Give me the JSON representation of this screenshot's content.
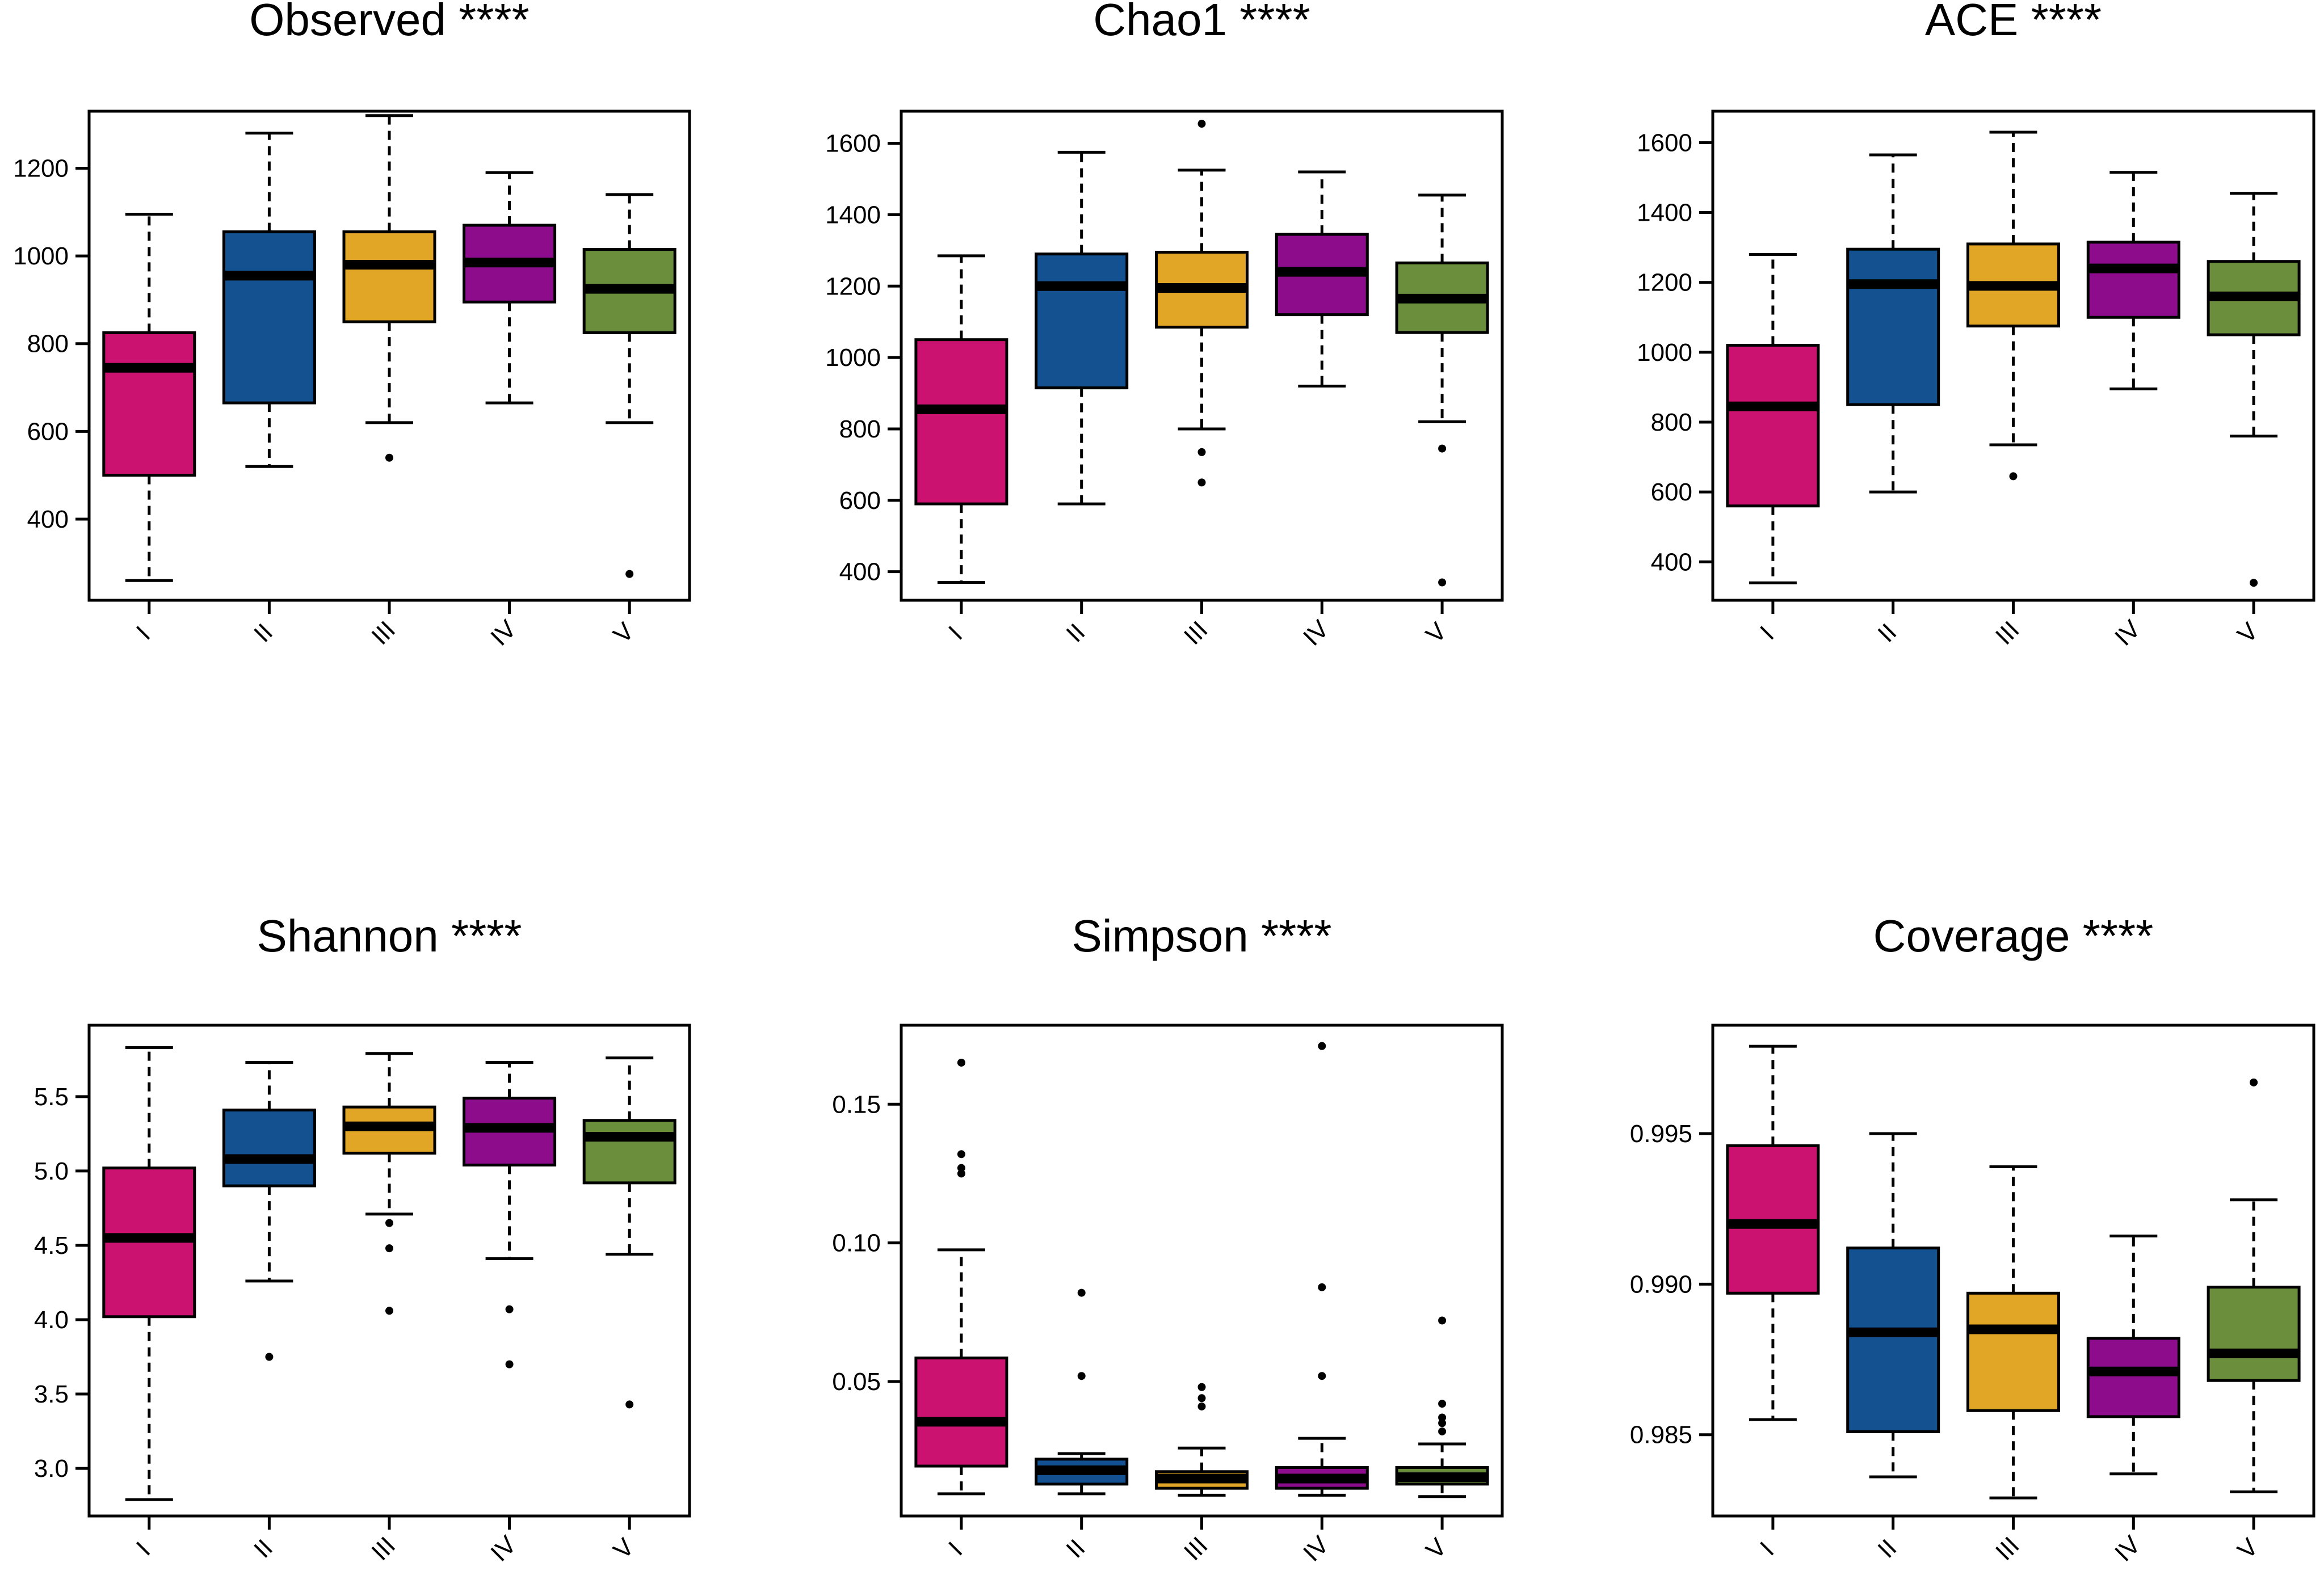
{
  "figure": {
    "colors": {
      "groups": [
        "#CC1270",
        "#135190",
        "#E1A626",
        "#8C0C8C",
        "#6A8E3C"
      ],
      "median": "#000000",
      "frame": "#000000"
    }
  },
  "chart_data": [
    {
      "type": "boxplot",
      "title": "Observed ****",
      "categories": [
        "I",
        "II",
        "III",
        "IV",
        "V"
      ],
      "ylim": [
        215,
        1330
      ],
      "yticks": [
        400,
        600,
        800,
        1000,
        1200
      ],
      "ytick_labels": [
        "400",
        "600",
        "800",
        "1000",
        "1200"
      ],
      "boxes": [
        {
          "low": 260,
          "q1": 500,
          "median": 745,
          "q3": 825,
          "high": 1095,
          "outliers": []
        },
        {
          "low": 520,
          "q1": 665,
          "median": 955,
          "q3": 1055,
          "high": 1280,
          "outliers": []
        },
        {
          "low": 620,
          "q1": 850,
          "median": 980,
          "q3": 1055,
          "high": 1320,
          "outliers": [
            540
          ]
        },
        {
          "low": 665,
          "q1": 895,
          "median": 985,
          "q3": 1070,
          "high": 1190,
          "outliers": []
        },
        {
          "low": 620,
          "q1": 825,
          "median": 925,
          "q3": 1015,
          "high": 1140,
          "outliers": [
            275
          ]
        }
      ]
    },
    {
      "type": "boxplot",
      "title": "Chao1 ****",
      "categories": [
        "I",
        "II",
        "III",
        "IV",
        "V"
      ],
      "ylim": [
        320,
        1690
      ],
      "yticks": [
        400,
        600,
        800,
        1000,
        1200,
        1400,
        1600
      ],
      "ytick_labels": [
        "400",
        "600",
        "800",
        "1000",
        "1200",
        "1400",
        "1600"
      ],
      "boxes": [
        {
          "low": 370,
          "q1": 590,
          "median": 855,
          "q3": 1050,
          "high": 1285,
          "outliers": []
        },
        {
          "low": 590,
          "q1": 915,
          "median": 1200,
          "q3": 1290,
          "high": 1575,
          "outliers": []
        },
        {
          "low": 800,
          "q1": 1085,
          "median": 1195,
          "q3": 1295,
          "high": 1525,
          "outliers": [
            650,
            735,
            1655
          ]
        },
        {
          "low": 920,
          "q1": 1120,
          "median": 1240,
          "q3": 1345,
          "high": 1520,
          "outliers": []
        },
        {
          "low": 820,
          "q1": 1070,
          "median": 1165,
          "q3": 1265,
          "high": 1455,
          "outliers": [
            370,
            745
          ]
        }
      ]
    },
    {
      "type": "boxplot",
      "title": "ACE ****",
      "categories": [
        "I",
        "II",
        "III",
        "IV",
        "V"
      ],
      "ylim": [
        290,
        1690
      ],
      "yticks": [
        400,
        600,
        800,
        1000,
        1200,
        1400,
        1600
      ],
      "ytick_labels": [
        "400",
        "600",
        "800",
        "1000",
        "1200",
        "1400",
        "1600"
      ],
      "boxes": [
        {
          "low": 340,
          "q1": 560,
          "median": 845,
          "q3": 1020,
          "high": 1280,
          "outliers": []
        },
        {
          "low": 600,
          "q1": 850,
          "median": 1195,
          "q3": 1295,
          "high": 1565,
          "outliers": []
        },
        {
          "low": 735,
          "q1": 1075,
          "median": 1190,
          "q3": 1310,
          "high": 1630,
          "outliers": [
            645
          ]
        },
        {
          "low": 895,
          "q1": 1100,
          "median": 1240,
          "q3": 1315,
          "high": 1515,
          "outliers": []
        },
        {
          "low": 760,
          "q1": 1050,
          "median": 1160,
          "q3": 1260,
          "high": 1455,
          "outliers": [
            340
          ]
        }
      ]
    },
    {
      "type": "boxplot",
      "title": "Shannon ****",
      "categories": [
        "I",
        "II",
        "III",
        "IV",
        "V"
      ],
      "ylim": [
        2.68,
        5.98
      ],
      "yticks": [
        3.0,
        3.5,
        4.0,
        4.5,
        5.0,
        5.5
      ],
      "ytick_labels": [
        "3.0",
        "3.5",
        "4.0",
        "4.5",
        "5.0",
        "5.5"
      ],
      "boxes": [
        {
          "low": 2.79,
          "q1": 4.02,
          "median": 4.55,
          "q3": 5.02,
          "high": 5.83,
          "outliers": []
        },
        {
          "low": 4.26,
          "q1": 4.9,
          "median": 5.08,
          "q3": 5.41,
          "high": 5.73,
          "outliers": [
            3.75
          ]
        },
        {
          "low": 4.71,
          "q1": 5.12,
          "median": 5.3,
          "q3": 5.43,
          "high": 5.79,
          "outliers": [
            4.06,
            4.48,
            4.65
          ]
        },
        {
          "low": 4.41,
          "q1": 5.04,
          "median": 5.29,
          "q3": 5.49,
          "high": 5.73,
          "outliers": [
            3.7,
            4.07
          ]
        },
        {
          "low": 4.44,
          "q1": 4.92,
          "median": 5.23,
          "q3": 5.34,
          "high": 5.76,
          "outliers": [
            3.43
          ]
        }
      ]
    },
    {
      "type": "boxplot",
      "title": "Simpson ****",
      "categories": [
        "I",
        "II",
        "III",
        "IV",
        "V"
      ],
      "ylim": [
        0.0015,
        0.1785
      ],
      "yticks": [
        0.05,
        0.1,
        0.15
      ],
      "ytick_labels": [
        "0.05",
        "0.10",
        "0.15"
      ],
      "boxes": [
        {
          "low": 0.0095,
          "q1": 0.0195,
          "median": 0.0355,
          "q3": 0.0585,
          "high": 0.0975,
          "outliers": [
            0.125,
            0.127,
            0.132,
            0.165
          ]
        },
        {
          "low": 0.0095,
          "q1": 0.013,
          "median": 0.018,
          "q3": 0.022,
          "high": 0.024,
          "outliers": [
            0.052,
            0.082
          ]
        },
        {
          "low": 0.009,
          "q1": 0.0115,
          "median": 0.015,
          "q3": 0.0175,
          "high": 0.026,
          "outliers": [
            0.041,
            0.044,
            0.048
          ]
        },
        {
          "low": 0.009,
          "q1": 0.0115,
          "median": 0.015,
          "q3": 0.019,
          "high": 0.0295,
          "outliers": [
            0.052,
            0.084,
            0.171
          ]
        },
        {
          "low": 0.0085,
          "q1": 0.013,
          "median": 0.0155,
          "q3": 0.019,
          "high": 0.0275,
          "outliers": [
            0.032,
            0.035,
            0.037,
            0.042,
            0.072
          ]
        }
      ]
    },
    {
      "type": "boxplot",
      "title": "Coverage ****",
      "categories": [
        "I",
        "II",
        "III",
        "IV",
        "V"
      ],
      "ylim": [
        0.9823,
        0.9986
      ],
      "yticks": [
        0.985,
        0.99,
        0.995
      ],
      "ytick_labels": [
        "0.985",
        "0.990",
        "0.995"
      ],
      "boxes": [
        {
          "low": 0.9855,
          "q1": 0.9897,
          "median": 0.992,
          "q3": 0.9946,
          "high": 0.9979,
          "outliers": []
        },
        {
          "low": 0.9836,
          "q1": 0.9851,
          "median": 0.9884,
          "q3": 0.9912,
          "high": 0.995,
          "outliers": []
        },
        {
          "low": 0.9829,
          "q1": 0.9858,
          "median": 0.9885,
          "q3": 0.9897,
          "high": 0.9939,
          "outliers": []
        },
        {
          "low": 0.9837,
          "q1": 0.9856,
          "median": 0.9871,
          "q3": 0.9882,
          "high": 0.9916,
          "outliers": []
        },
        {
          "low": 0.9831,
          "q1": 0.9868,
          "median": 0.9877,
          "q3": 0.9899,
          "high": 0.9928,
          "outliers": [
            0.9967
          ]
        }
      ]
    }
  ]
}
